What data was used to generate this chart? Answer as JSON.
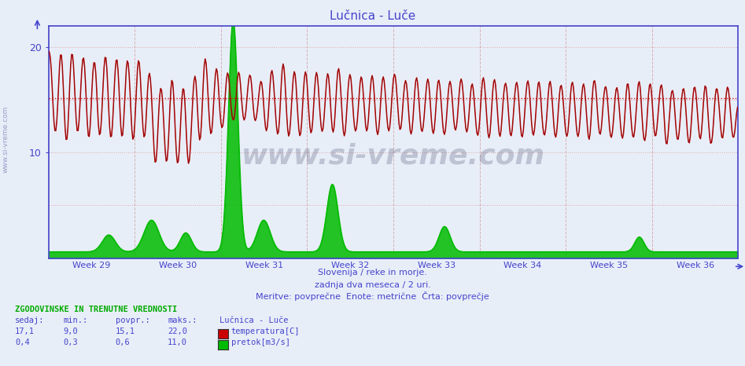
{
  "title": "Lučnica - Luče",
  "title_color": "#4444cc",
  "bg_color": "#e8eef8",
  "plot_bg_color": "#e8eef8",
  "grid_color": "#ddaaaa",
  "axis_color": "#4444cc",
  "ylim": [
    0,
    22
  ],
  "yticks": [
    10,
    20
  ],
  "weeks": [
    "Week 29",
    "Week 30",
    "Week 31",
    "Week 32",
    "Week 33",
    "Week 34",
    "Week 35",
    "Week 36"
  ],
  "avg_line_y": 15.1,
  "avg_line_color": "#cc0000",
  "temp_color": "#cc0000",
  "flow_color": "#00bb00",
  "black_line_color": "#222222",
  "watermark": "www.si-vreme.com",
  "subtitle1": "Slovenija / reke in morje.",
  "subtitle2": "zadnja dva meseca / 2 uri.",
  "subtitle3": "Meritve: povprečne  Enote: metrične  Črta: povprečje",
  "subtitle_color": "#4444cc",
  "table_header": "ZGODOVINSKE IN TRENUTNE VREDNOSTI",
  "table_header_color": "#00aa00",
  "col_headers": [
    "sedaj:",
    "min.:",
    "povpr.:",
    "maks.:"
  ],
  "col_color": "#4444cc",
  "station_name": "Lučnica - Luče",
  "temp_row": [
    "17,1",
    "9,0",
    "15,1",
    "22,0"
  ],
  "flow_row": [
    "0,4",
    "0,3",
    "0,6",
    "11,0"
  ],
  "temp_label": "temperatura[C]",
  "flow_label": "pretok[m3/s]",
  "n_points": 744,
  "flow_scale": 2.0
}
